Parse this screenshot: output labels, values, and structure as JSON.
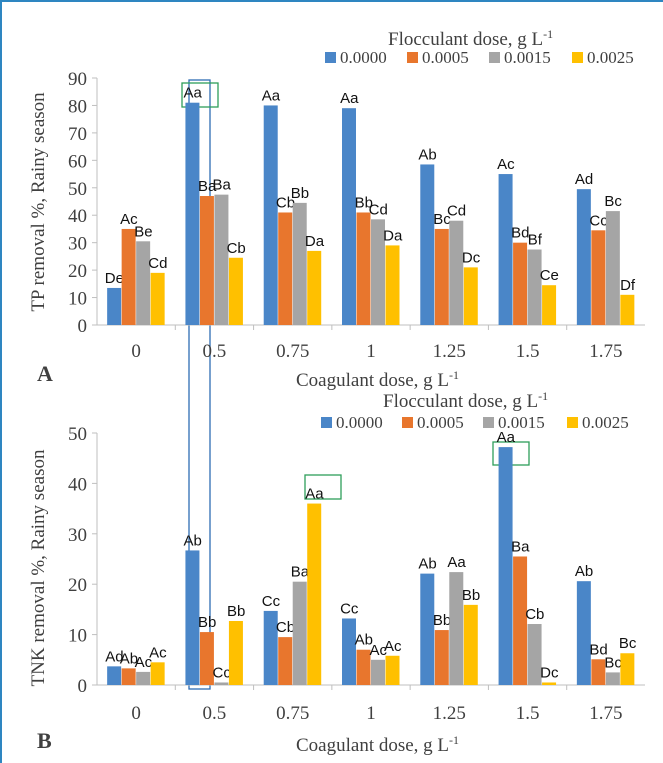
{
  "chart_data": [
    {
      "type": "bar",
      "panel_label": "A",
      "ylabel": "TP removal %, Rainy season",
      "xlabel": "Coagulant dose, g L",
      "xlabel_sup": "-1",
      "legend_title": "Flocculant dose, g L",
      "legend_title_sup": "-1",
      "categories": [
        "0",
        "0.5",
        "0.75",
        "1",
        "1.25",
        "1.5",
        "1.75"
      ],
      "ylim": [
        0,
        90
      ],
      "yticks": [
        0,
        10,
        20,
        30,
        40,
        50,
        60,
        70,
        80,
        90
      ],
      "series": [
        {
          "name": "0.0000",
          "color": "#4a86c8",
          "values": [
            13.5,
            81,
            80,
            79,
            58.5,
            55,
            49.5
          ],
          "labels": [
            "De",
            "Aa",
            "Aa",
            "Aa",
            "Ab",
            "Ac",
            "Ad"
          ]
        },
        {
          "name": "0.0005",
          "color": "#e8762d",
          "values": [
            35,
            47,
            41,
            41,
            35,
            30,
            34.5
          ],
          "labels": [
            "Ac",
            "Ba",
            "Cb",
            "Bb",
            "Bc",
            "Bd",
            "Cc"
          ]
        },
        {
          "name": "0.0015",
          "color": "#a5a5a5",
          "values": [
            30.5,
            47.5,
            44.5,
            38.5,
            38,
            27.5,
            41.5
          ],
          "labels": [
            "Be",
            "Ba",
            "Bb",
            "Cd",
            "Cd",
            "Bf",
            "Bc"
          ]
        },
        {
          "name": "0.0025",
          "color": "#ffc000",
          "values": [
            19,
            24.5,
            27,
            29,
            21,
            14.5,
            11
          ],
          "labels": [
            "Cd",
            "Cb",
            "Da",
            "Da",
            "Dc",
            "Ce",
            "Df"
          ]
        }
      ]
    },
    {
      "type": "bar",
      "panel_label": "B",
      "ylabel": "TNK removal %, Rainy season",
      "xlabel": "Coagulant dose, g L",
      "xlabel_sup": "-1",
      "legend_title": "Flocculant dose, g L",
      "legend_title_sup": "-1",
      "categories": [
        "0",
        "0.5",
        "0.75",
        "1",
        "1.25",
        "1.5",
        "1.75"
      ],
      "ylim": [
        0,
        50
      ],
      "yticks": [
        0,
        10,
        20,
        30,
        40,
        50
      ],
      "series": [
        {
          "name": "0.0000",
          "color": "#4a86c8",
          "values": [
            3.7,
            26.7,
            14.7,
            13.2,
            22.1,
            47.2,
            20.6
          ],
          "labels": [
            "Ad",
            "Ab",
            "Cc",
            "Cc",
            "Ab",
            "Aa",
            "Ab"
          ]
        },
        {
          "name": "0.0005",
          "color": "#e8762d",
          "values": [
            3.3,
            10.5,
            9.5,
            7.0,
            10.9,
            25.5,
            5.1
          ],
          "labels": [
            "Ab",
            "Bb",
            "Cb",
            "Ab",
            "Bb",
            "Ba",
            "Bd"
          ]
        },
        {
          "name": "0.0015",
          "color": "#a5a5a5",
          "values": [
            2.6,
            0.5,
            20.5,
            5.0,
            22.4,
            12.1,
            2.5
          ],
          "labels": [
            "Ac",
            "Cc",
            "Ba",
            "Ac",
            "Aa",
            "Cb",
            "Bc"
          ]
        },
        {
          "name": "0.0025",
          "color": "#ffc000",
          "values": [
            4.5,
            12.7,
            36.0,
            5.8,
            15.9,
            0.5,
            6.3
          ],
          "labels": [
            "Ac",
            "Bb",
            "Aa",
            "Ac",
            "Bb",
            "Dc",
            "Bc"
          ]
        }
      ]
    }
  ]
}
